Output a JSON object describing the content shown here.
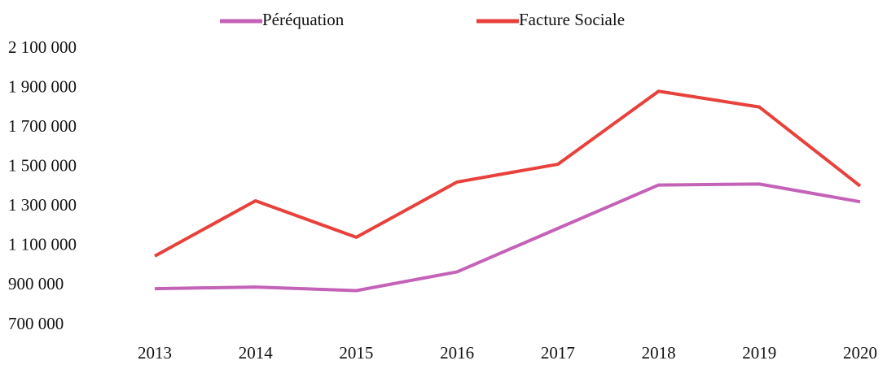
{
  "chart_data": {
    "type": "line",
    "categories": [
      "2013",
      "2014",
      "2015",
      "2016",
      "2017",
      "2018",
      "2019",
      "2020"
    ],
    "series": [
      {
        "name": "Péréquation",
        "color": "#c462b8",
        "values": [
          885000,
          893000,
          875000,
          970000,
          1190000,
          1410000,
          1415000,
          1325000
        ]
      },
      {
        "name": "Facture Sociale",
        "color": "#e8413c",
        "values": [
          1050000,
          1330000,
          1145000,
          1425000,
          1515000,
          1885000,
          1805000,
          1405000
        ]
      }
    ],
    "ylim": [
      700000,
      2100000
    ],
    "yticks": [
      {
        "value": 700000,
        "label": "700 000"
      },
      {
        "value": 900000,
        "label": "900 000"
      },
      {
        "value": 1100000,
        "label": "1 100 000"
      },
      {
        "value": 1300000,
        "label": "1 300 000"
      },
      {
        "value": 1500000,
        "label": "1 500 000"
      },
      {
        "value": 1700000,
        "label": "1 700 000"
      },
      {
        "value": 1900000,
        "label": "1 900 000"
      },
      {
        "value": 2100000,
        "label": "2 100 000"
      }
    ],
    "grid": false,
    "legend": "top"
  }
}
